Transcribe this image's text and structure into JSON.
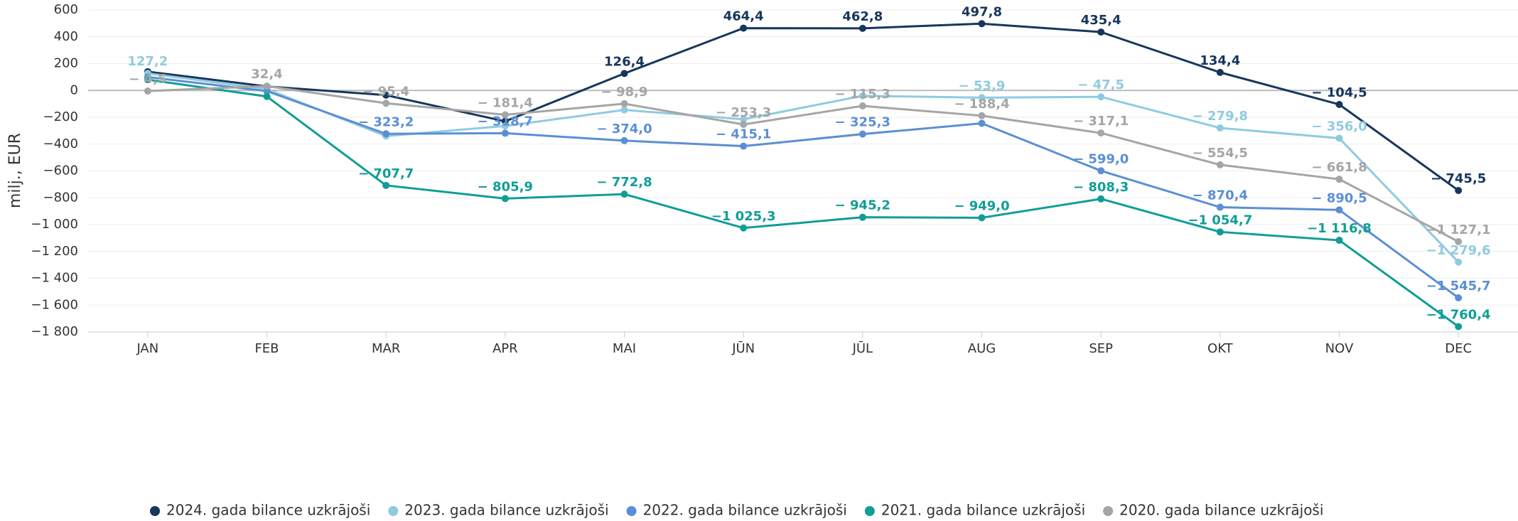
{
  "chart_data": {
    "type": "line",
    "y_label": "milj., EUR",
    "categories": [
      "JAN",
      "FEB",
      "MAR",
      "APR",
      "MAI",
      "JŪN",
      "JŪL",
      "AUG",
      "SEP",
      "OKT",
      "NOV",
      "DEC"
    ],
    "ylim": [
      -1800,
      600
    ],
    "yticks": [
      600,
      400,
      200,
      0,
      {
        "value": -200,
        "label": "−200"
      },
      {
        "value": -400,
        "label": "−400"
      },
      {
        "value": -600,
        "label": "−600"
      },
      {
        "value": -800,
        "label": "−800"
      },
      {
        "value": -1000,
        "label": "−1 000"
      },
      {
        "value": -1200,
        "label": "−1 200"
      },
      {
        "value": -1400,
        "label": "−1 400"
      },
      {
        "value": -1600,
        "label": "−1 600"
      },
      {
        "value": -1800,
        "label": "−1 800"
      }
    ],
    "grid": true,
    "legend": "bottom",
    "series": [
      {
        "name": "2024. gada bilance uzkrājoši",
        "color": "#17365d",
        "values": [
          140,
          30,
          -35,
          -230,
          126.4,
          464.4,
          462.8,
          497.8,
          435.4,
          134.4,
          -104.5,
          -745.5
        ],
        "value_labels": [
          null,
          null,
          null,
          null,
          "126,4",
          "464,4",
          "462,8",
          "497,8",
          "435,4",
          "134,4",
          "− 104,5",
          "− 745,5"
        ]
      },
      {
        "name": "2023. gada bilance uzkrājoši",
        "color": "#8fcbe0",
        "values": [
          127.2,
          10,
          -340,
          -265,
          -145,
          -215,
          -40,
          -53.9,
          -47.5,
          -279.8,
          -356.0,
          -1279.6
        ],
        "value_labels": [
          "127,2",
          null,
          null,
          null,
          null,
          null,
          null,
          "− 53,9",
          "− 47,5",
          "− 279,8",
          "− 356,0",
          "−1 279,6"
        ]
      },
      {
        "name": "2022. gada bilance uzkrājoši",
        "color": "#5b8fd5",
        "values": [
          100,
          -5,
          -323.2,
          -318.7,
          -374.0,
          -415.1,
          -325.3,
          -245,
          -599.0,
          -870.4,
          -890.5,
          -1545.7
        ],
        "value_labels": [
          null,
          null,
          "− 323,2",
          "− 318,7",
          "− 374,0",
          "− 415,1",
          "− 325,3",
          null,
          "− 599,0",
          "− 870,4",
          "− 890,5",
          "−1 545,7"
        ]
      },
      {
        "name": "2021. gada bilance uzkrājoši",
        "color": "#0f9e97",
        "values": [
          80,
          -45,
          -707.7,
          -805.9,
          -772.8,
          -1025.3,
          -945.2,
          -949.0,
          -808.3,
          -1054.7,
          -1116.8,
          -1760.4
        ],
        "value_labels": [
          null,
          null,
          "− 707,7",
          "− 805,9",
          "− 772,8",
          "−1 025,3",
          "− 945,2",
          "− 949,0",
          "− 808,3",
          "−1 054,7",
          "−1 116,8",
          "−1 760,4"
        ]
      },
      {
        "name": "2020. gada bilance uzkrājoši",
        "color": "#a5a5a5",
        "values": [
          -4.5,
          32.4,
          -95.4,
          -181.4,
          -98.9,
          -253.3,
          -115.3,
          -188.4,
          -317.1,
          -554.5,
          -661.8,
          -1127.1
        ],
        "value_labels": [
          "− 4,5",
          "32,4",
          "− 95,4",
          "− 181,4",
          "− 98,9",
          "− 253,3",
          "− 115,3",
          "− 188,4",
          "− 317,1",
          "− 554,5",
          "− 661,8",
          "−1 127,1"
        ]
      }
    ]
  }
}
